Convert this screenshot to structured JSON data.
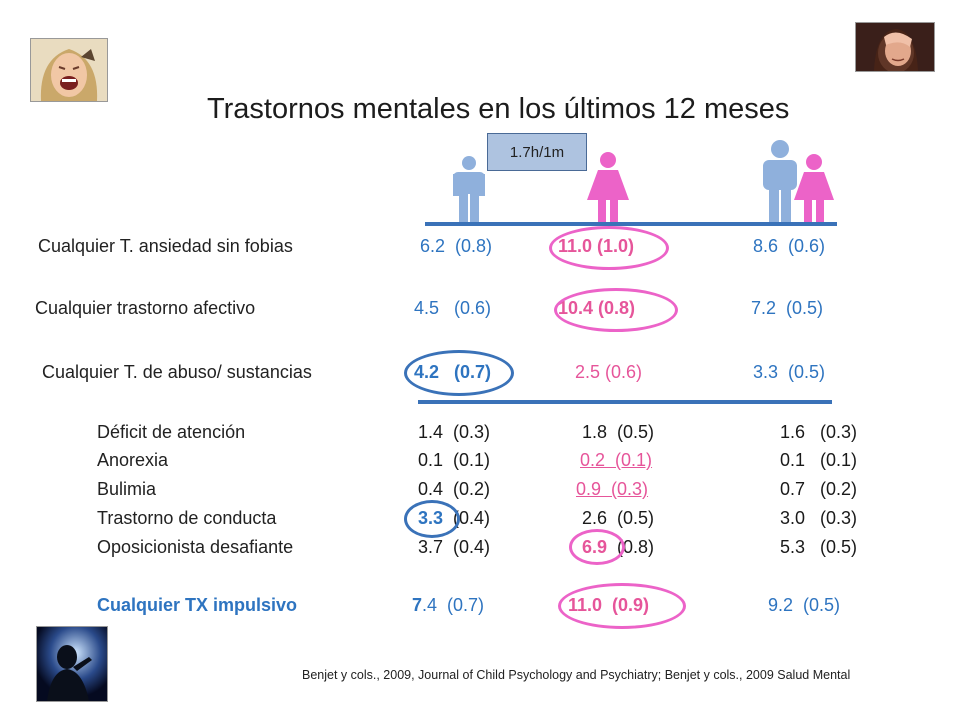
{
  "title": "Trastornos mentales en los últimos 12 meses",
  "ratio_label": "1.7h/1m",
  "colors": {
    "male": "#8fb0dc",
    "female": "#ec63c8",
    "accent_blue": "#2e74c0",
    "accent_pink": "#e6559a",
    "line": "#3a72b8"
  },
  "icons": {
    "male": "man-icon",
    "female": "woman-icon"
  },
  "rows": [
    {
      "label": "Cualquier T. ansiedad sin fobias",
      "men": "6.2  (0.8)",
      "women": "11.0 (1.0)",
      "total": "8.6  (0.6)"
    },
    {
      "label": "Cualquier trastorno afectivo",
      "men": "4.5   (0.6)",
      "women": "10.4 (0.8)",
      "total": "7.2  (0.5)"
    },
    {
      "label": "Cualquier T. de abuso/ sustancias",
      "men": "4.2   (0.7)",
      "women": "2.5 (0.6)",
      "total": "3.3  (0.5)"
    }
  ],
  "subrows": [
    {
      "label": "Déficit de atención",
      "men": "1.4  (0.3)",
      "women": "1.8  (0.5)",
      "total": "1.6   (0.3)"
    },
    {
      "label": "Anorexia",
      "men": "0.1  (0.1)",
      "women": "0.2  (0.1)",
      "total": "0.1   (0.1)"
    },
    {
      "label": "Bulimia",
      "men": "0.4  (0.2)",
      "women": "0.9  (0.3)",
      "total": "0.7   (0.2)"
    },
    {
      "label": "Trastorno de conducta",
      "men_hl": "3.3",
      "men_rest": "  (0.4)",
      "women": "2.6  (0.5)",
      "total": "3.0   (0.3)"
    },
    {
      "label": "Oposicionista desafiante",
      "men": "3.7  (0.4)",
      "women_hl": "6.9",
      "women_rest": "  (0.8)",
      "total": "5.3   (0.5)"
    }
  ],
  "summary": {
    "label": "Cualquier TX impulsivo",
    "men_hl": "7",
    "men_rest": ".4  (0.7)",
    "women": "11.0  (0.9)",
    "total": "9.2  (0.5)"
  },
  "reference": "Benjet y cols., 2009, Journal of Child Psychology and Psychiatry; Benjet y cols., 2009 Salud Mental"
}
